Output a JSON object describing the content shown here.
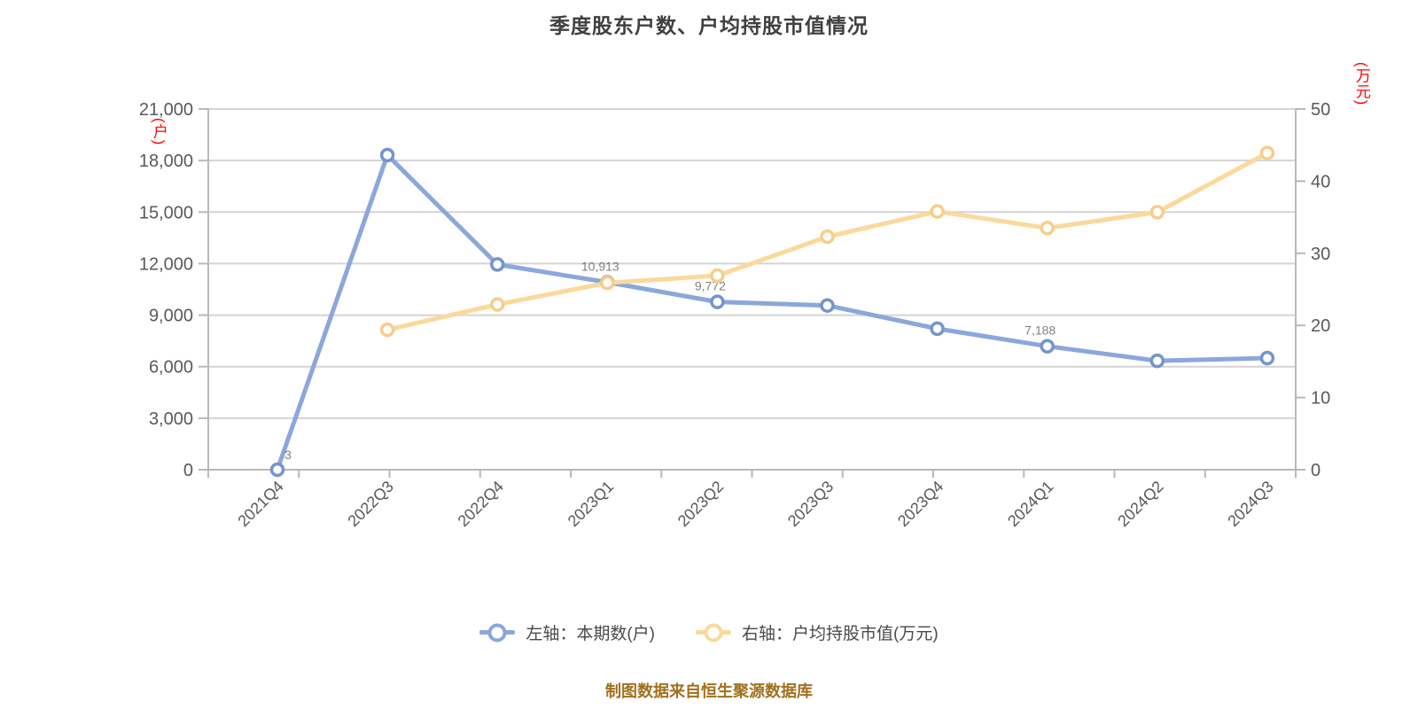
{
  "title": "季度股东户数、户均持股市值情况",
  "footer": "制图数据来自恒生聚源数据库",
  "left_axis_unit": "(户)",
  "right_axis_unit": "(万元)",
  "legend": [
    {
      "label": "左轴：本期数(户)",
      "color": "#8BA7DB"
    },
    {
      "label": "右轴：户均持股市值(万元)",
      "color": "#FBD99B"
    }
  ],
  "colors": {
    "title_text": "#404040",
    "axis_line": "#b9b9b9",
    "grid_line": "#d4d4d4",
    "tick_label": "#595959",
    "axis_unit_red": "#ff0000",
    "blue_line": "#8BA7DB",
    "blue_marker": "#7495CC",
    "yellow_line": "#FBD99B",
    "yellow_marker": "#F6CE8B",
    "point_label": "#000000",
    "footer_text": "#a2701e"
  },
  "chart_data": {
    "type": "line",
    "title": "季度股东户数、户均持股市值情况",
    "categories": [
      "2021Q4",
      "2022Q3",
      "2022Q4",
      "2023Q1",
      "2023Q2",
      "2023Q3",
      "2023Q4",
      "2024Q1",
      "2024Q2",
      "2024Q3"
    ],
    "series": [
      {
        "name": "左轴：本期数(户)",
        "axis": "left",
        "color": "#8BA7DB",
        "marker_color": "#7495CC",
        "values": [
          3,
          18320,
          11950,
          10913,
          9772,
          9560,
          8210,
          7188,
          6340,
          6500
        ],
        "point_labels": [
          "3",
          null,
          null,
          "10,913",
          "9,772",
          null,
          null,
          "7,188",
          null,
          null
        ]
      },
      {
        "name": "右轴：户均持股市值(万元)",
        "axis": "right",
        "color": "#FBD99B",
        "marker_color": "#F6CE8B",
        "values": [
          null,
          19.4,
          22.9,
          25.9,
          26.9,
          32.3,
          35.8,
          33.5,
          35.7,
          43.9
        ],
        "point_labels": [
          null,
          null,
          null,
          null,
          null,
          null,
          null,
          null,
          null,
          null
        ]
      }
    ],
    "left_axis": {
      "min": 0,
      "max": 21000,
      "step": 3000,
      "unit": "(户)",
      "tick_labels": [
        "0",
        "3,000",
        "6,000",
        "9,000",
        "12,000",
        "15,000",
        "18,000",
        "21,000"
      ]
    },
    "right_axis": {
      "min": 0,
      "max": 50,
      "step": 10,
      "unit": "(万元)",
      "tick_labels": [
        "0",
        "10",
        "20",
        "30",
        "40",
        "50"
      ]
    },
    "grid": true,
    "legend_position": "bottom",
    "x_label_rotation_deg": -45
  }
}
